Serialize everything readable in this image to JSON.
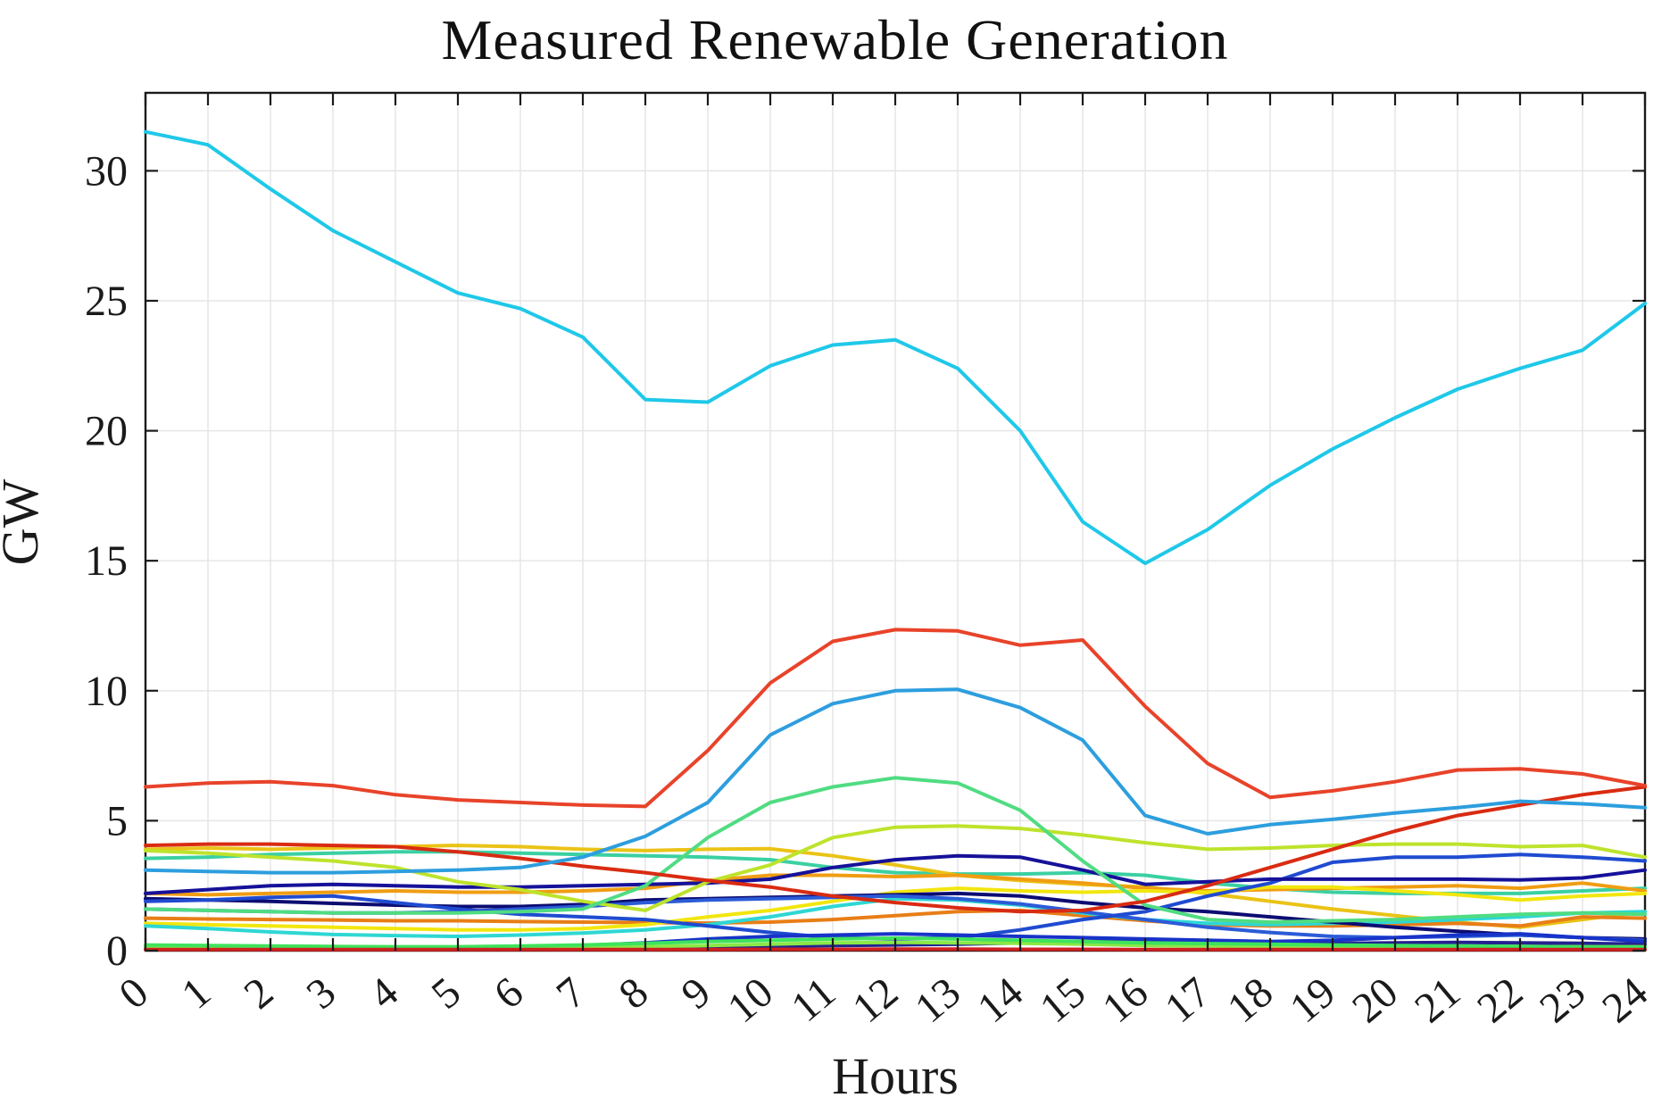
{
  "chart_data": {
    "type": "line",
    "title": "Measured Renewable Generation",
    "xlabel": "Hours",
    "ylabel": "GW",
    "x": [
      0,
      1,
      2,
      3,
      4,
      5,
      6,
      7,
      8,
      9,
      10,
      11,
      12,
      13,
      14,
      15,
      16,
      17,
      18,
      19,
      20,
      21,
      22,
      23,
      24
    ],
    "xticks": [
      0,
      1,
      2,
      3,
      4,
      5,
      6,
      7,
      8,
      9,
      10,
      11,
      12,
      13,
      14,
      15,
      16,
      17,
      18,
      19,
      20,
      21,
      22,
      23,
      24
    ],
    "yticks": [
      0,
      5,
      10,
      15,
      20,
      25,
      30
    ],
    "xlim": [
      0,
      24
    ],
    "ylim": [
      0,
      33
    ],
    "grid": true,
    "legend": "none",
    "x_tick_rotation": -40,
    "series": [
      {
        "name": "teal",
        "color": "#3bd0a2",
        "values": [
          3.55,
          3.6,
          3.7,
          3.75,
          3.8,
          3.8,
          3.75,
          3.7,
          3.65,
          3.6,
          3.5,
          3.2,
          3.0,
          2.95,
          2.95,
          3.0,
          2.9,
          2.6,
          2.4,
          2.25,
          2.2,
          2.2,
          2.2,
          2.3,
          2.4
        ]
      },
      {
        "name": "gold",
        "color": "#eac316",
        "values": [
          3.9,
          3.95,
          3.9,
          3.95,
          4.0,
          4.05,
          4.0,
          3.9,
          3.85,
          3.9,
          3.92,
          3.65,
          3.3,
          2.9,
          2.7,
          2.55,
          2.45,
          2.2,
          1.9,
          1.6,
          1.35,
          1.1,
          0.9,
          1.2,
          1.5
        ]
      },
      {
        "name": "orange-high",
        "color": "#f09d13",
        "values": [
          2.2,
          2.15,
          2.2,
          2.25,
          2.3,
          2.25,
          2.25,
          2.3,
          2.4,
          2.7,
          2.9,
          2.9,
          2.85,
          2.9,
          2.75,
          2.6,
          2.4,
          2.3,
          2.35,
          2.4,
          2.45,
          2.5,
          2.4,
          2.6,
          2.3
        ]
      },
      {
        "name": "orange-low",
        "color": "#e87e17",
        "values": [
          1.25,
          1.22,
          1.2,
          1.18,
          1.15,
          1.15,
          1.12,
          1.1,
          1.08,
          1.06,
          1.1,
          1.2,
          1.35,
          1.5,
          1.55,
          1.35,
          1.15,
          1.0,
          0.95,
          0.95,
          1.0,
          1.05,
          0.95,
          1.3,
          1.25
        ]
      },
      {
        "name": "yellow",
        "color": "#f2e60e",
        "values": [
          1.05,
          1.0,
          0.95,
          0.9,
          0.85,
          0.8,
          0.8,
          0.85,
          1.0,
          1.3,
          1.55,
          1.9,
          2.25,
          2.4,
          2.3,
          2.25,
          2.3,
          2.25,
          2.45,
          2.45,
          2.3,
          2.15,
          1.95,
          2.1,
          2.2
        ]
      },
      {
        "name": "cyan-small",
        "color": "#2ed7d3",
        "values": [
          0.95,
          0.85,
          0.72,
          0.62,
          0.58,
          0.55,
          0.6,
          0.68,
          0.8,
          1.0,
          1.3,
          1.7,
          2.0,
          1.95,
          1.75,
          1.45,
          1.2,
          1.05,
          1.0,
          1.05,
          1.1,
          1.2,
          1.3,
          1.45,
          1.5
        ]
      },
      {
        "name": "navy-dark",
        "color": "#0c0c72",
        "values": [
          2.0,
          1.95,
          1.9,
          1.82,
          1.75,
          1.7,
          1.7,
          1.78,
          1.95,
          2.0,
          2.05,
          2.1,
          2.15,
          2.2,
          2.1,
          1.85,
          1.65,
          1.5,
          1.3,
          1.1,
          0.9,
          0.75,
          0.6,
          0.5,
          0.45
        ]
      },
      {
        "name": "blue-flat",
        "color": "#2b5bd7",
        "values": [
          1.6,
          1.55,
          1.5,
          1.45,
          1.45,
          1.5,
          1.6,
          1.7,
          1.85,
          1.95,
          2.0,
          2.05,
          2.1,
          2.0,
          1.8,
          1.5,
          1.2,
          0.9,
          0.7,
          0.55,
          0.5,
          0.55,
          0.6,
          0.5,
          0.4
        ]
      },
      {
        "name": "royal-blue",
        "color": "#1f4bd0",
        "values": [
          1.9,
          1.95,
          2.05,
          2.1,
          1.85,
          1.6,
          1.4,
          1.3,
          1.2,
          0.95,
          0.7,
          0.5,
          0.45,
          0.5,
          0.8,
          1.2,
          1.5,
          2.1,
          2.6,
          3.4,
          3.6,
          3.6,
          3.7,
          3.6,
          3.45
        ]
      },
      {
        "name": "navy-mid",
        "color": "#161199",
        "values": [
          2.2,
          2.35,
          2.5,
          2.55,
          2.5,
          2.45,
          2.45,
          2.5,
          2.55,
          2.6,
          2.75,
          3.2,
          3.5,
          3.65,
          3.6,
          3.1,
          2.55,
          2.65,
          2.75,
          2.75,
          2.75,
          2.75,
          2.72,
          2.8,
          3.1
        ]
      },
      {
        "name": "green-yellow",
        "color": "#bee32c",
        "values": [
          3.85,
          3.75,
          3.6,
          3.45,
          3.2,
          2.65,
          2.35,
          1.9,
          1.55,
          2.65,
          3.3,
          4.35,
          4.75,
          4.8,
          4.7,
          4.45,
          4.15,
          3.9,
          3.95,
          4.05,
          4.1,
          4.1,
          4.0,
          4.05,
          3.6
        ]
      },
      {
        "name": "emerald",
        "color": "#50dc82",
        "values": [
          1.6,
          1.55,
          1.5,
          1.45,
          1.45,
          1.45,
          1.5,
          1.6,
          2.5,
          4.35,
          5.7,
          6.3,
          6.65,
          6.45,
          5.4,
          3.45,
          1.75,
          1.2,
          1.1,
          1.15,
          1.2,
          1.3,
          1.4,
          1.45,
          1.4
        ]
      },
      {
        "name": "red-rising",
        "color": "#d92b12",
        "values": [
          4.05,
          4.1,
          4.1,
          4.05,
          4.0,
          3.8,
          3.55,
          3.25,
          3.0,
          2.7,
          2.45,
          2.1,
          1.85,
          1.65,
          1.5,
          1.55,
          1.9,
          2.5,
          3.2,
          3.9,
          4.6,
          5.2,
          5.6,
          6.0,
          6.3
        ]
      },
      {
        "name": "navy-bottom",
        "color": "#232290",
        "values": [
          0.1,
          0.1,
          0.1,
          0.1,
          0.1,
          0.1,
          0.1,
          0.1,
          0.12,
          0.15,
          0.18,
          0.2,
          0.22,
          0.25,
          0.3,
          0.35,
          0.38,
          0.35,
          0.3,
          0.28,
          0.3,
          0.32,
          0.3,
          0.28,
          0.25
        ]
      },
      {
        "name": "blue-bottom",
        "color": "#1733c9",
        "values": [
          0.12,
          0.12,
          0.1,
          0.1,
          0.1,
          0.12,
          0.15,
          0.2,
          0.3,
          0.45,
          0.55,
          0.6,
          0.65,
          0.6,
          0.55,
          0.5,
          0.45,
          0.4,
          0.35,
          0.4,
          0.5,
          0.6,
          0.65,
          0.5,
          0.35
        ]
      },
      {
        "name": "light-green-bottom",
        "color": "#8be845",
        "values": [
          0.1,
          0.1,
          0.1,
          0.1,
          0.1,
          0.1,
          0.1,
          0.12,
          0.15,
          0.2,
          0.25,
          0.3,
          0.32,
          0.3,
          0.28,
          0.25,
          0.2,
          0.18,
          0.15,
          0.15,
          0.15,
          0.15,
          0.15,
          0.15,
          0.15
        ]
      },
      {
        "name": "spring-green",
        "color": "#3ee35c",
        "values": [
          0.22,
          0.2,
          0.18,
          0.16,
          0.15,
          0.15,
          0.18,
          0.22,
          0.28,
          0.35,
          0.4,
          0.45,
          0.48,
          0.45,
          0.4,
          0.35,
          0.3,
          0.27,
          0.25,
          0.22,
          0.2,
          0.18,
          0.16,
          0.14,
          0.13
        ]
      },
      {
        "name": "dark-red-flat",
        "color": "#ce2020",
        "values": [
          0.04,
          0.04,
          0.04,
          0.04,
          0.04,
          0.04,
          0.04,
          0.04,
          0.04,
          0.04,
          0.05,
          0.05,
          0.06,
          0.06,
          0.05,
          0.05,
          0.04,
          0.04,
          0.04,
          0.04,
          0.04,
          0.04,
          0.04,
          0.04,
          0.04
        ]
      },
      {
        "name": "sky-blue",
        "color": "#2d9ede",
        "values": [
          3.1,
          3.05,
          3.0,
          3.0,
          3.05,
          3.1,
          3.2,
          3.6,
          4.4,
          5.7,
          8.3,
          9.5,
          10.0,
          10.05,
          9.35,
          8.1,
          5.2,
          4.5,
          4.85,
          5.05,
          5.3,
          5.5,
          5.75,
          5.65,
          5.5
        ]
      },
      {
        "name": "red-solar",
        "color": "#e8432a",
        "values": [
          6.3,
          6.45,
          6.5,
          6.35,
          6.0,
          5.8,
          5.7,
          5.6,
          5.55,
          7.7,
          10.3,
          11.9,
          12.35,
          12.3,
          11.75,
          11.95,
          9.4,
          7.2,
          5.9,
          6.15,
          6.5,
          6.95,
          7.0,
          6.8,
          6.35
        ]
      },
      {
        "name": "cyan-big",
        "color": "#1fc8e8",
        "values": [
          31.5,
          31.0,
          29.3,
          27.7,
          26.5,
          25.3,
          24.7,
          23.6,
          21.2,
          21.1,
          22.5,
          23.3,
          23.5,
          22.4,
          20.0,
          16.5,
          14.9,
          16.2,
          17.9,
          19.3,
          20.5,
          21.6,
          22.4,
          23.1,
          24.9
        ]
      }
    ]
  },
  "layout_labels": {
    "title": "Measured Renewable Generation",
    "ylabel": "GW",
    "xlabel": "Hours"
  }
}
